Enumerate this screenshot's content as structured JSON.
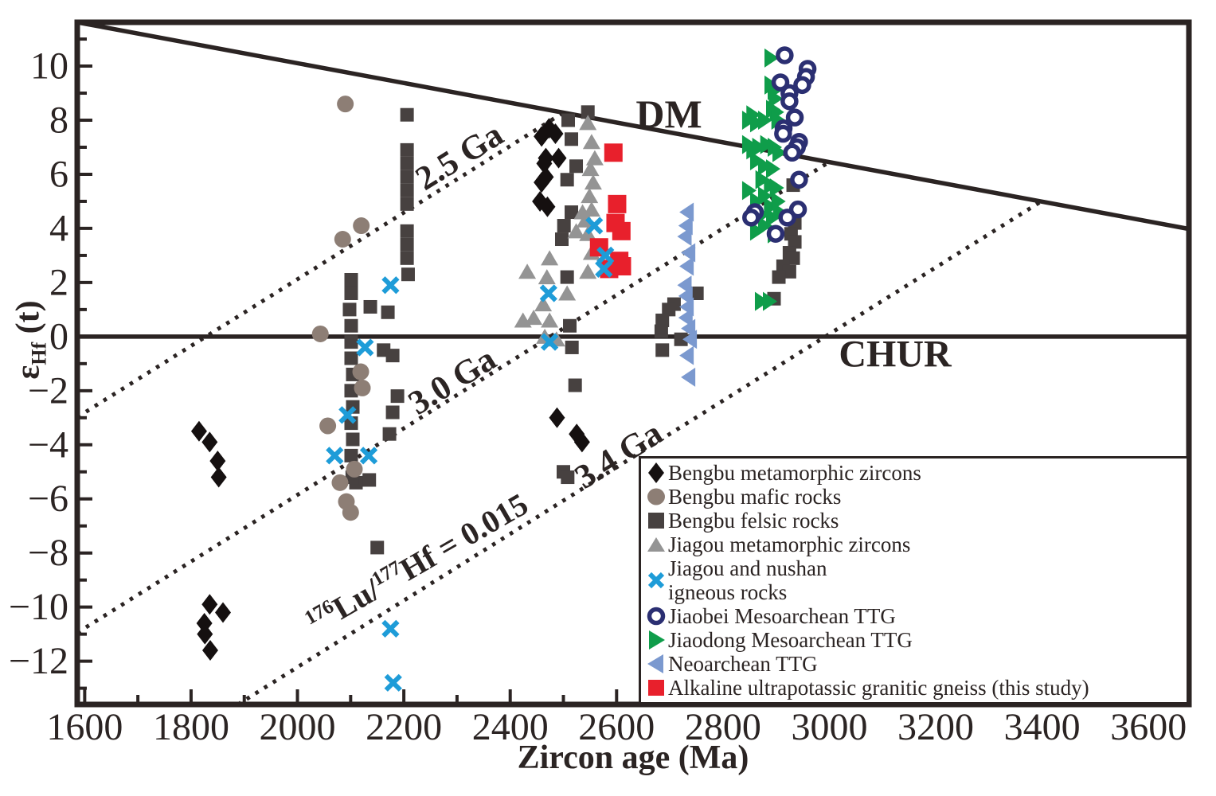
{
  "labels": {
    "dm": "DM",
    "chur": "CHUR",
    "ga25": "2.5 Ga",
    "ga30": "3.0 Ga",
    "ga34": "3.4 Ga",
    "luhf": {
      "sup1": "176",
      "base1": "Lu/",
      "sup2": "177",
      "base2": "Hf = 0.015"
    },
    "y_sym": "ε",
    "y_sub": "Hf",
    "y_rest": " (t)",
    "xlabel": "Zircon age (Ma)"
  },
  "colors": {
    "frame": "#2b2423",
    "black_diamond": "#151010",
    "mafic_brown": "#8d7e75",
    "felsic_gray": "#474140",
    "jiagou_gray": "#949494",
    "igneous_blue": "#1e9cd8",
    "jiaobei_navy": "#2b2f72",
    "jiaodong_green": "#0f9d4a",
    "neoarchean_blue": "#7b99cf",
    "alkaline_red": "#e8202c"
  },
  "legend": {
    "items": [
      {
        "marker": "diamond",
        "label": "Bengbu metamorphic zircons"
      },
      {
        "marker": "circle",
        "label": "Bengbu mafic rocks"
      },
      {
        "marker": "square",
        "label": "Bengbu felsic rocks"
      },
      {
        "marker": "triangle-up",
        "label": "Jiagou metamorphic zircons"
      },
      {
        "marker": "x",
        "label": "Jiagou and nushan",
        "label2": "igneous rocks"
      },
      {
        "marker": "open-circle",
        "label": "Jiaobei Mesoarchean TTG"
      },
      {
        "marker": "triangle-right",
        "label": "Jiaodong Mesoarchean TTG"
      },
      {
        "marker": "triangle-left",
        "label": "Neoarchean TTG"
      },
      {
        "marker": "square-red",
        "label": "Alkaline ultrapotassic granitic gneiss (this study)"
      }
    ]
  },
  "chart_data": {
    "type": "scatter",
    "title": "",
    "xlabel": "Zircon age (Ma)",
    "ylabel": "εHf (t)",
    "xlim": [
      1586,
      3676
    ],
    "ylim": [
      -13.6,
      11.62
    ],
    "grid": false,
    "legend_position": "lower right",
    "x_major_ticks": [
      1600,
      1800,
      2000,
      2200,
      2400,
      2600,
      2800,
      3000,
      3200,
      3400,
      3600
    ],
    "x_minor_ticks": [
      1700,
      1900,
      2100,
      2300,
      2500,
      2700,
      2900,
      3100,
      3300,
      3500
    ],
    "y_major_ticks": [
      10,
      8,
      6,
      4,
      2,
      0,
      -2,
      -4,
      -6,
      -8,
      -10,
      -12
    ],
    "y_minor_ticks": [
      11,
      9,
      7,
      5,
      3,
      1,
      -1,
      -3,
      -5,
      -7,
      -9,
      -11,
      -13
    ],
    "annotation": "176Lu/177Hf = 0.015",
    "reference_lines": [
      {
        "name": "DM",
        "label": "DM",
        "style": "solid",
        "points": [
          [
            1586,
            11.62
          ],
          [
            3676,
            3.98
          ]
        ]
      },
      {
        "name": "CHUR",
        "label": "CHUR",
        "style": "solid",
        "points": [
          [
            1586,
            0
          ],
          [
            3676,
            0
          ]
        ]
      },
      {
        "name": "2.5 Ga crustal evolution",
        "label": "2.5 Ga",
        "style": "dotted",
        "points": [
          [
            1586,
            -2.98
          ],
          [
            2500,
            8.28
          ]
        ]
      },
      {
        "name": "3.0 Ga crustal evolution",
        "label": "3.0 Ga",
        "style": "dotted",
        "points": [
          [
            1586,
            -10.95
          ],
          [
            3000,
            6.46
          ]
        ]
      },
      {
        "name": "3.4 Ga crustal evolution",
        "label": "3.4 Ga",
        "style": "dotted",
        "points": [
          [
            1888,
            -13.6
          ],
          [
            3400,
            5.02
          ]
        ]
      }
    ],
    "series": [
      {
        "name": "Bengbu felsic rocks",
        "marker": "square",
        "color": "#474140",
        "points": [
          [
            2206,
            8.2
          ],
          [
            2206,
            6.9
          ],
          [
            2206,
            6.4
          ],
          [
            2206,
            5.9
          ],
          [
            2206,
            5.4
          ],
          [
            2206,
            4.9
          ],
          [
            2206,
            3.9
          ],
          [
            2206,
            3.4
          ],
          [
            2206,
            2.9
          ],
          [
            2208,
            2.3
          ],
          [
            2101,
            2.1
          ],
          [
            2101,
            1.6
          ],
          [
            2098,
            1.0
          ],
          [
            2101,
            0.4
          ],
          [
            2101,
            -0.2
          ],
          [
            2101,
            -0.8
          ],
          [
            2104,
            -1.4
          ],
          [
            2101,
            -2.0
          ],
          [
            2104,
            -2.6
          ],
          [
            2101,
            -3.2
          ],
          [
            2104,
            -3.8
          ],
          [
            2101,
            -4.4
          ],
          [
            2137,
            1.1
          ],
          [
            2170,
            0.9
          ],
          [
            2162,
            -0.5
          ],
          [
            2179,
            -0.7
          ],
          [
            2188,
            -2.2
          ],
          [
            2179,
            -2.8
          ],
          [
            2173,
            -3.6
          ],
          [
            2135,
            -5.3
          ],
          [
            2110,
            -5.4
          ],
          [
            2103,
            -5.2
          ],
          [
            2150,
            -7.8
          ],
          [
            2546,
            8.3
          ],
          [
            2509,
            8.0
          ],
          [
            2515,
            7.3
          ],
          [
            2524,
            6.3
          ],
          [
            2507,
            5.8
          ],
          [
            2515,
            4.6
          ],
          [
            2501,
            4.1
          ],
          [
            2497,
            3.6
          ],
          [
            2507,
            2.2
          ],
          [
            2512,
            0.4
          ],
          [
            2516,
            -0.4
          ],
          [
            2522,
            -1.8
          ],
          [
            2500,
            -5.0
          ],
          [
            2508,
            -5.2
          ],
          [
            2751,
            1.6
          ],
          [
            2708,
            1.2
          ],
          [
            2698,
            1.0
          ],
          [
            2686,
            0.6
          ],
          [
            2684,
            0.2
          ],
          [
            2721,
            -0.1
          ],
          [
            2686,
            -0.5
          ],
          [
            2932,
            5.6
          ],
          [
            2935,
            4.2
          ],
          [
            2928,
            3.8
          ],
          [
            2935,
            3.5
          ],
          [
            2925,
            3.1
          ],
          [
            2932,
            2.9
          ],
          [
            2913,
            2.6
          ],
          [
            2925,
            2.4
          ],
          [
            2905,
            2.2
          ],
          [
            2896,
            1.4
          ]
        ]
      },
      {
        "name": "Bengbu mafic rocks",
        "marker": "circle",
        "color": "#8d7e75",
        "points": [
          [
            2090,
            8.6
          ],
          [
            2120,
            4.1
          ],
          [
            2085,
            3.6
          ],
          [
            2043,
            0.1
          ],
          [
            2119,
            -1.3
          ],
          [
            2122,
            -1.9
          ],
          [
            2057,
            -3.3
          ],
          [
            2107,
            -4.9
          ],
          [
            2080,
            -5.4
          ],
          [
            2092,
            -6.1
          ],
          [
            2100,
            -6.5
          ]
        ]
      },
      {
        "name": "Bengbu metamorphic zircons",
        "marker": "diamond",
        "color": "#151010",
        "points": [
          [
            1815,
            -3.5
          ],
          [
            1835,
            -3.9
          ],
          [
            1850,
            -4.6
          ],
          [
            1852,
            -5.2
          ],
          [
            1835,
            -9.9
          ],
          [
            1860,
            -10.2
          ],
          [
            1825,
            -10.6
          ],
          [
            1826,
            -11.0
          ],
          [
            1836,
            -11.6
          ],
          [
            2473,
            7.7
          ],
          [
            2459,
            7.4
          ],
          [
            2485,
            7.5
          ],
          [
            2467,
            6.6
          ],
          [
            2491,
            6.6
          ],
          [
            2464,
            6.4
          ],
          [
            2467,
            5.9
          ],
          [
            2459,
            5.7
          ],
          [
            2456,
            5.0
          ],
          [
            2470,
            4.8
          ],
          [
            2488,
            -3.0
          ],
          [
            2525,
            -3.6
          ],
          [
            2535,
            -3.9
          ]
        ]
      },
      {
        "name": "Jiagou metamorphic zircons",
        "marker": "triangle-up",
        "color": "#949494",
        "points": [
          [
            2546,
            7.9
          ],
          [
            2553,
            7.2
          ],
          [
            2559,
            6.6
          ],
          [
            2551,
            6.2
          ],
          [
            2556,
            5.7
          ],
          [
            2549,
            5.2
          ],
          [
            2553,
            4.7
          ],
          [
            2541,
            4.3
          ],
          [
            2546,
            3.8
          ],
          [
            2536,
            4.6
          ],
          [
            2524,
            3.9
          ],
          [
            2553,
            3.1
          ],
          [
            2546,
            2.4
          ],
          [
            2474,
            2.9
          ],
          [
            2432,
            2.4
          ],
          [
            2469,
            2.2
          ],
          [
            2507,
            1.6
          ],
          [
            2462,
            1.2
          ],
          [
            2424,
            0.6
          ],
          [
            2444,
            0.7
          ],
          [
            2474,
            0.6
          ],
          [
            2465,
            0.0
          ],
          [
            2487,
            -0.1
          ]
        ]
      },
      {
        "name": "Jiaodong Mesoarchean TTG",
        "marker": "triangle-right",
        "color": "#0f9d4a",
        "points": [
          [
            2890,
            10.3
          ],
          [
            2890,
            9.3
          ],
          [
            2896,
            9.1
          ],
          [
            2898,
            8.8
          ],
          [
            2893,
            8.4
          ],
          [
            2856,
            8.2
          ],
          [
            2848,
            8.0
          ],
          [
            2863,
            7.9
          ],
          [
            2878,
            8.0
          ],
          [
            2900,
            8.3
          ],
          [
            2903,
            8.0
          ],
          [
            2848,
            7.1
          ],
          [
            2856,
            6.9
          ],
          [
            2867,
            7.0
          ],
          [
            2882,
            7.1
          ],
          [
            2896,
            7.0
          ],
          [
            2905,
            6.8
          ],
          [
            2863,
            6.5
          ],
          [
            2878,
            6.3
          ],
          [
            2893,
            6.2
          ],
          [
            2873,
            5.8
          ],
          [
            2889,
            5.6
          ],
          [
            2900,
            5.5
          ],
          [
            2878,
            5.2
          ],
          [
            2848,
            5.4
          ],
          [
            2863,
            5.0
          ],
          [
            2889,
            4.8
          ],
          [
            2903,
            5.0
          ],
          [
            2873,
            4.5
          ],
          [
            2893,
            4.4
          ],
          [
            2906,
            4.6
          ],
          [
            2878,
            4.1
          ],
          [
            2863,
            3.9
          ],
          [
            2896,
            3.8
          ],
          [
            2872,
            1.3
          ],
          [
            2887,
            1.3
          ]
        ]
      },
      {
        "name": "Jiaobei Mesoarchean TTG",
        "marker": "open-circle",
        "color": "#2b2f72",
        "points": [
          [
            2916,
            10.4
          ],
          [
            2959,
            9.9
          ],
          [
            2956,
            9.6
          ],
          [
            2949,
            9.3
          ],
          [
            2908,
            9.4
          ],
          [
            2925,
            9.0
          ],
          [
            2925,
            8.7
          ],
          [
            2935,
            8.1
          ],
          [
            2914,
            7.7
          ],
          [
            2913,
            7.5
          ],
          [
            2943,
            7.2
          ],
          [
            2939,
            7.0
          ],
          [
            2930,
            6.8
          ],
          [
            2943,
            5.8
          ],
          [
            2941,
            4.7
          ],
          [
            2860,
            4.6
          ],
          [
            2853,
            4.4
          ],
          [
            2921,
            4.4
          ],
          [
            2899,
            3.8
          ]
        ]
      },
      {
        "name": "Neoarchean TTG",
        "marker": "triangle-left",
        "color": "#7b99cf",
        "points": [
          [
            2733,
            4.6
          ],
          [
            2731,
            4.1
          ],
          [
            2729,
            3.7
          ],
          [
            2736,
            3.1
          ],
          [
            2733,
            2.6
          ],
          [
            2729,
            1.9
          ],
          [
            2731,
            1.5
          ],
          [
            2733,
            1.1
          ],
          [
            2731,
            0.7
          ],
          [
            2736,
            0.3
          ],
          [
            2739,
            -0.1
          ],
          [
            2733,
            -0.7
          ],
          [
            2736,
            -1.5
          ]
        ]
      },
      {
        "name": "Alkaline ultrapotassic granitic gneiss (this study)",
        "marker": "square-large",
        "color": "#e8202c",
        "points": [
          [
            2594,
            6.8
          ],
          [
            2601,
            4.9
          ],
          [
            2598,
            4.2
          ],
          [
            2609,
            3.9
          ],
          [
            2567,
            3.3
          ],
          [
            2605,
            2.8
          ],
          [
            2586,
            2.5
          ],
          [
            2610,
            2.6
          ]
        ]
      },
      {
        "name": "Jiagou and nushan igneous rocks",
        "marker": "x",
        "color": "#1e9cd8",
        "points": [
          [
            2175,
            1.9
          ],
          [
            2127,
            -0.4
          ],
          [
            2094,
            -2.9
          ],
          [
            2070,
            -4.4
          ],
          [
            2134,
            -4.4
          ],
          [
            2175,
            -10.8
          ],
          [
            2180,
            -12.8
          ],
          [
            2558,
            4.1
          ],
          [
            2579,
            3.0
          ],
          [
            2576,
            2.5
          ],
          [
            2472,
            1.6
          ],
          [
            2474,
            -0.2
          ]
        ]
      }
    ]
  }
}
